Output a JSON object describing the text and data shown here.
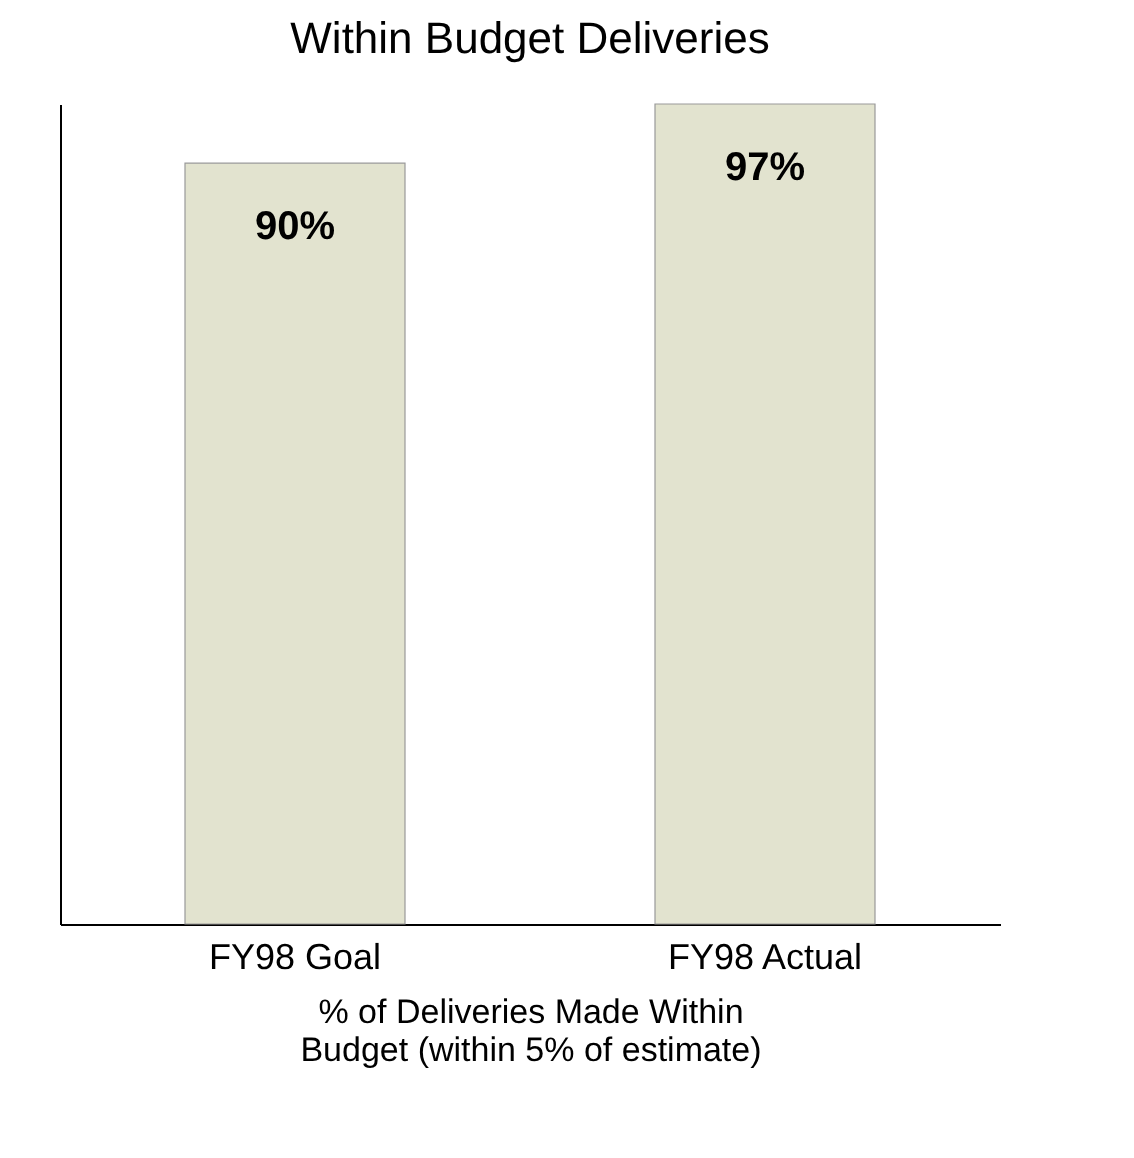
{
  "chart_data": {
    "type": "bar",
    "title": "Within Budget Deliveries",
    "xlabel": "% of Deliveries Made Within Budget (within 5% of estimate)",
    "categories": [
      "FY98 Goal",
      "FY98 Actual"
    ],
    "values": [
      90,
      97
    ],
    "value_labels": [
      "90%",
      "97%"
    ],
    "color": "#e2e3cf"
  }
}
